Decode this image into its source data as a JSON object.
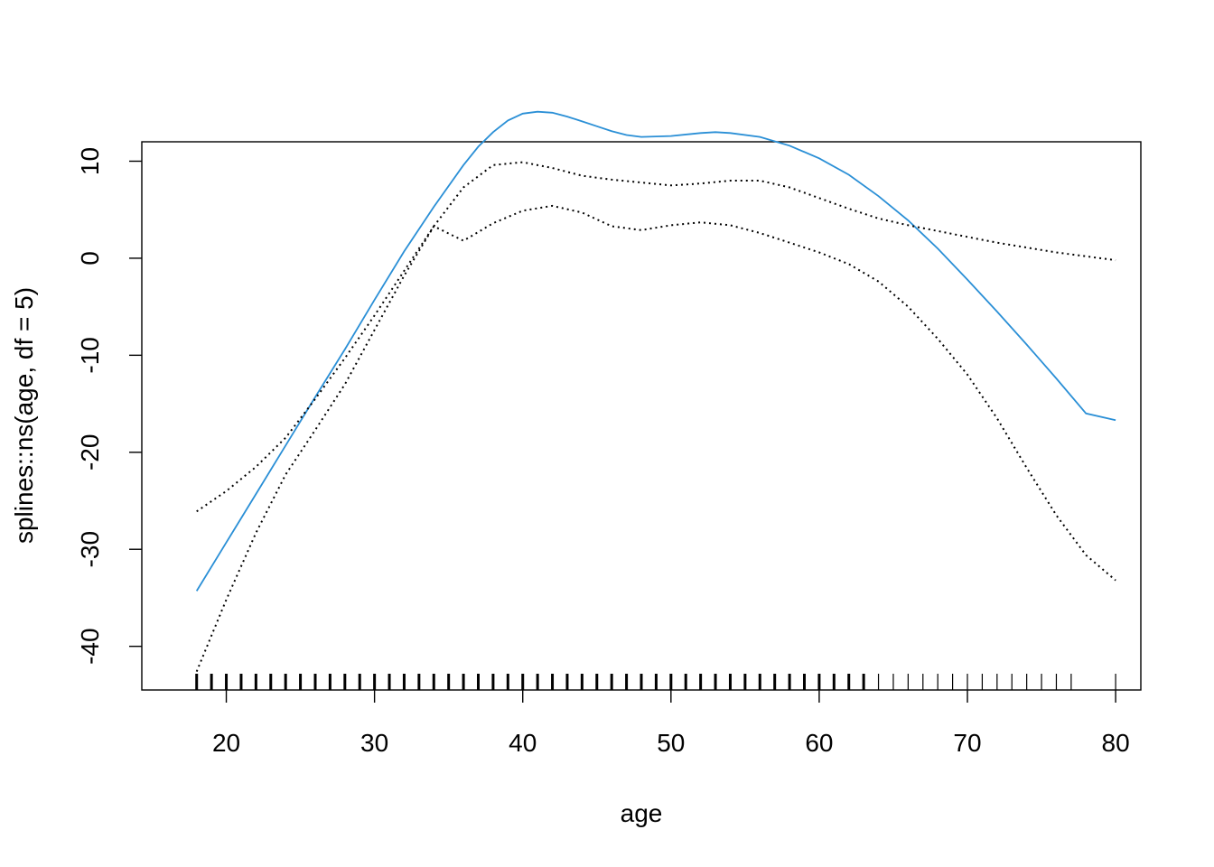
{
  "chart_data": {
    "type": "line",
    "title": "",
    "xlabel": "age",
    "ylabel": "splines::ns(age, df = 5)",
    "xlim": [
      14.3,
      81.7
    ],
    "ylim": [
      -44.5,
      12
    ],
    "x_ticks": [
      20,
      30,
      40,
      50,
      60,
      70,
      80
    ],
    "x_tick_labels": [
      "20",
      "30",
      "40",
      "50",
      "60",
      "70",
      "80"
    ],
    "y_ticks": [
      -40,
      -30,
      -20,
      -10,
      0,
      10
    ],
    "y_tick_labels": [
      "-40",
      "-30",
      "-20",
      "-10",
      "0",
      "10"
    ],
    "grid": false,
    "legend": "none",
    "series": [
      {
        "role": "fit",
        "color": "#2a8fd6",
        "dash": "solid",
        "x": [
          18,
          20,
          22,
          24,
          26,
          28,
          30,
          32,
          34,
          36,
          37,
          38,
          39,
          40,
          41,
          42,
          43,
          44,
          45,
          46,
          47,
          48,
          50,
          52,
          53,
          54,
          56,
          58,
          60,
          62,
          64,
          66,
          68,
          70,
          72,
          74,
          76,
          78,
          80
        ],
        "y": [
          -34.3,
          -29.3,
          -24.3,
          -19.3,
          -14.3,
          -9.4,
          -4.3,
          0.7,
          5.3,
          9.6,
          11.5,
          13.0,
          14.2,
          14.9,
          15.1,
          15.0,
          14.6,
          14.1,
          13.6,
          13.1,
          12.7,
          12.5,
          12.6,
          12.9,
          13.0,
          12.9,
          12.5,
          11.6,
          10.3,
          8.6,
          6.4,
          3.9,
          1.0,
          -2.2,
          -5.5,
          -8.9,
          -12.4,
          -16.0,
          -16.7
        ]
      },
      {
        "role": "upper",
        "color": "#000000",
        "dash": "dotted",
        "x": [
          18,
          20,
          22,
          24,
          26,
          28,
          30,
          32,
          34,
          36,
          38,
          40,
          42,
          44,
          46,
          48,
          50,
          52,
          54,
          56,
          58,
          60,
          62,
          64,
          66,
          68,
          70,
          72,
          74,
          76,
          78,
          80
        ],
        "y": [
          -26.1,
          -24.0,
          -21.5,
          -18.5,
          -14.5,
          -10.3,
          -5.9,
          -1.3,
          3.3,
          7.3,
          9.6,
          9.9,
          9.3,
          8.5,
          8.1,
          7.8,
          7.5,
          7.7,
          8.0,
          8.0,
          7.3,
          6.2,
          5.1,
          4.1,
          3.4,
          2.8,
          2.2,
          1.6,
          1.1,
          0.6,
          0.2,
          -0.2
        ]
      },
      {
        "role": "lower",
        "color": "#000000",
        "dash": "dotted",
        "x": [
          18,
          20,
          22,
          24,
          26,
          28,
          30,
          32,
          34,
          36,
          38,
          40,
          42,
          44,
          46,
          48,
          50,
          52,
          54,
          56,
          58,
          60,
          62,
          64,
          66,
          68,
          70,
          72,
          74,
          76,
          78,
          80
        ],
        "y": [
          -42.6,
          -35.2,
          -28.3,
          -22.3,
          -17.7,
          -13.0,
          -7.4,
          -1.8,
          3.3,
          1.8,
          3.6,
          4.9,
          5.4,
          4.7,
          3.3,
          2.9,
          3.4,
          3.7,
          3.4,
          2.6,
          1.6,
          0.6,
          -0.6,
          -2.4,
          -5.0,
          -8.3,
          -12.0,
          -16.5,
          -21.6,
          -26.5,
          -30.6,
          -33.2
        ]
      }
    ],
    "rug": [
      18,
      19,
      20,
      21,
      22,
      23,
      24,
      25,
      26,
      27,
      28,
      29,
      30,
      31,
      32,
      33,
      34,
      35,
      36,
      37,
      38,
      39,
      40,
      41,
      42,
      43,
      44,
      45,
      46,
      47,
      48,
      49,
      50,
      51,
      52,
      53,
      54,
      55,
      56,
      57,
      58,
      59,
      60,
      61,
      62,
      63,
      64,
      65,
      66,
      67,
      68,
      69,
      70,
      71,
      72,
      73,
      74,
      75,
      76,
      77,
      80
    ]
  }
}
